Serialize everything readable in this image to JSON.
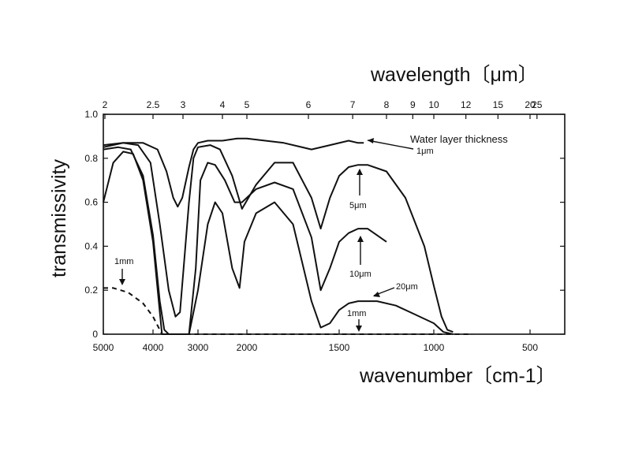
{
  "chart_data": {
    "type": "line",
    "title": "",
    "xlabel": "wavenumber〔cm-1〕",
    "x2label": "wavelength〔μm〕",
    "ylabel": "transmissivity",
    "x_axis": "reciprocal",
    "xlim": [
      5000,
      0
    ],
    "ylim": [
      0,
      1.0
    ],
    "grid": false,
    "x_ticks": [
      "5000",
      "4000",
      "3000",
      "2000",
      "1500",
      "1000",
      "500"
    ],
    "x2_ticks": [
      "2",
      "2.5",
      "3",
      "4",
      "5",
      "6",
      "7",
      "8",
      "9",
      "10",
      "12",
      "15",
      "20",
      "25"
    ],
    "y_ticks": [
      "0",
      "0.2",
      "0.4",
      "0.6",
      "0.8",
      "1.0"
    ],
    "series": [
      {
        "name": "1μm",
        "style": "solid",
        "points": [
          [
            5000,
            0.86
          ],
          [
            4600,
            0.87
          ],
          [
            4200,
            0.87
          ],
          [
            3900,
            0.84
          ],
          [
            3700,
            0.74
          ],
          [
            3550,
            0.62
          ],
          [
            3450,
            0.58
          ],
          [
            3350,
            0.62
          ],
          [
            3200,
            0.76
          ],
          [
            3100,
            0.84
          ],
          [
            3000,
            0.87
          ],
          [
            2800,
            0.88
          ],
          [
            2500,
            0.88
          ],
          [
            2200,
            0.89
          ],
          [
            2000,
            0.89
          ],
          [
            1800,
            0.87
          ],
          [
            1650,
            0.84
          ],
          [
            1550,
            0.86
          ],
          [
            1450,
            0.88
          ],
          [
            1400,
            0.87
          ],
          [
            1370,
            0.87
          ]
        ]
      },
      {
        "name": "5μm",
        "style": "solid",
        "points": [
          [
            5000,
            0.85
          ],
          [
            4600,
            0.87
          ],
          [
            4300,
            0.86
          ],
          [
            4050,
            0.78
          ],
          [
            3850,
            0.5
          ],
          [
            3650,
            0.2
          ],
          [
            3500,
            0.08
          ],
          [
            3400,
            0.1
          ],
          [
            3300,
            0.35
          ],
          [
            3200,
            0.6
          ],
          [
            3100,
            0.8
          ],
          [
            3000,
            0.85
          ],
          [
            2750,
            0.86
          ],
          [
            2550,
            0.84
          ],
          [
            2300,
            0.72
          ],
          [
            2100,
            0.57
          ],
          [
            1950,
            0.68
          ],
          [
            1850,
            0.78
          ],
          [
            1750,
            0.78
          ],
          [
            1650,
            0.62
          ],
          [
            1600,
            0.48
          ],
          [
            1550,
            0.62
          ],
          [
            1500,
            0.72
          ],
          [
            1450,
            0.76
          ],
          [
            1400,
            0.77
          ],
          [
            1350,
            0.77
          ],
          [
            1250,
            0.74
          ],
          [
            1150,
            0.62
          ],
          [
            1050,
            0.4
          ],
          [
            1000,
            0.22
          ],
          [
            960,
            0.08
          ],
          [
            930,
            0.02
          ],
          [
            900,
            0.01
          ]
        ]
      },
      {
        "name": "10μm",
        "style": "solid",
        "points": [
          [
            5000,
            0.84
          ],
          [
            4700,
            0.85
          ],
          [
            4450,
            0.84
          ],
          [
            4200,
            0.72
          ],
          [
            4000,
            0.45
          ],
          [
            3850,
            0.15
          ],
          [
            3750,
            0.02
          ],
          [
            3650,
            0.0
          ],
          [
            3400,
            0.0
          ],
          [
            3200,
            0.0
          ],
          [
            3050,
            0.3
          ],
          [
            2950,
            0.7
          ],
          [
            2800,
            0.78
          ],
          [
            2650,
            0.77
          ],
          [
            2450,
            0.7
          ],
          [
            2250,
            0.6
          ],
          [
            2100,
            0.6
          ],
          [
            1950,
            0.66
          ],
          [
            1850,
            0.69
          ],
          [
            1750,
            0.66
          ],
          [
            1650,
            0.44
          ],
          [
            1600,
            0.2
          ],
          [
            1550,
            0.3
          ],
          [
            1500,
            0.42
          ],
          [
            1450,
            0.46
          ],
          [
            1400,
            0.48
          ],
          [
            1350,
            0.48
          ],
          [
            1300,
            0.45
          ],
          [
            1250,
            0.42
          ]
        ]
      },
      {
        "name": "20μm",
        "style": "solid",
        "points": [
          [
            5000,
            0.6
          ],
          [
            4800,
            0.78
          ],
          [
            4600,
            0.83
          ],
          [
            4400,
            0.82
          ],
          [
            4200,
            0.7
          ],
          [
            4000,
            0.42
          ],
          [
            3850,
            0.1
          ],
          [
            3800,
            0.0
          ],
          [
            3500,
            0.0
          ],
          [
            3200,
            0.0
          ],
          [
            3000,
            0.2
          ],
          [
            2800,
            0.5
          ],
          [
            2650,
            0.6
          ],
          [
            2500,
            0.55
          ],
          [
            2300,
            0.3
          ],
          [
            2150,
            0.21
          ],
          [
            2050,
            0.42
          ],
          [
            1950,
            0.55
          ],
          [
            1850,
            0.6
          ],
          [
            1750,
            0.5
          ],
          [
            1650,
            0.15
          ],
          [
            1600,
            0.03
          ],
          [
            1550,
            0.05
          ],
          [
            1500,
            0.11
          ],
          [
            1450,
            0.14
          ],
          [
            1400,
            0.15
          ],
          [
            1300,
            0.15
          ],
          [
            1200,
            0.13
          ],
          [
            1100,
            0.09
          ],
          [
            1000,
            0.05
          ],
          [
            950,
            0.01
          ],
          [
            900,
            0.0
          ]
        ]
      },
      {
        "name": "1mm",
        "style": "dashed",
        "points": [
          [
            5000,
            0.21
          ],
          [
            4800,
            0.21
          ],
          [
            4500,
            0.19
          ],
          [
            4200,
            0.14
          ],
          [
            4000,
            0.08
          ],
          [
            3800,
            0.0
          ],
          [
            3000,
            0.0
          ],
          [
            2000,
            0.0
          ],
          [
            1500,
            0.0
          ],
          [
            1000,
            0.0
          ],
          [
            900,
            0.0
          ],
          [
            800,
            0.0
          ]
        ]
      }
    ],
    "annotations": [
      {
        "text": "Water layer thickness",
        "series": "1μm"
      },
      {
        "text": "1μm",
        "series": "1μm"
      },
      {
        "text": "5μm",
        "series": "5μm"
      },
      {
        "text": "10μm",
        "series": "10μm"
      },
      {
        "text": "20μm",
        "series": "20μm"
      },
      {
        "text": "1mm",
        "series": "1mm"
      },
      {
        "text": "1mm",
        "series": "1mm"
      }
    ]
  }
}
